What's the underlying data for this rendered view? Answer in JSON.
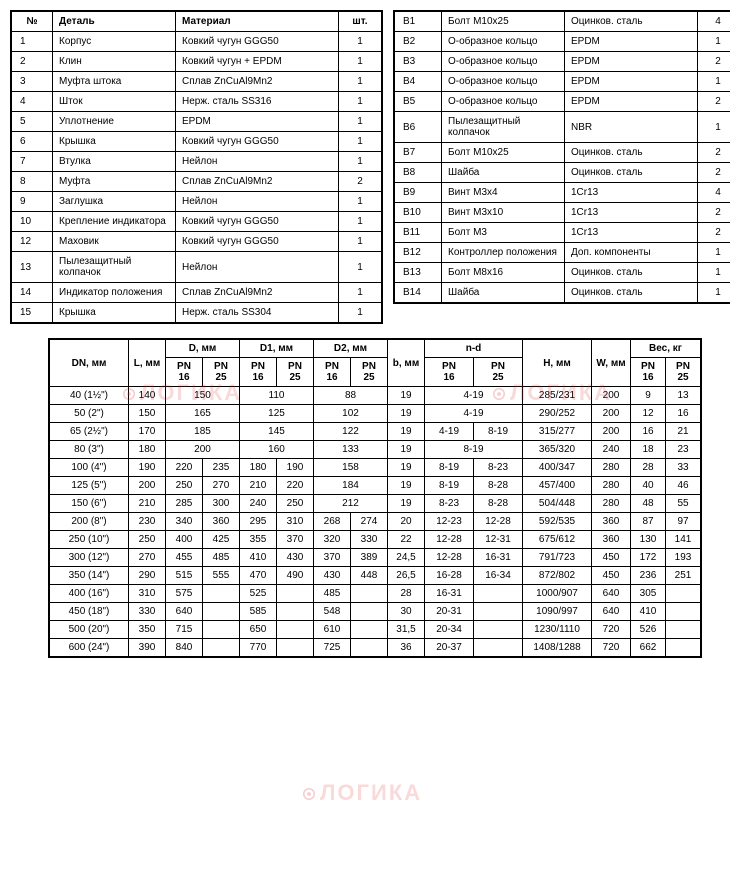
{
  "table1": {
    "headers": [
      "№",
      "Деталь",
      "Материал",
      "шт."
    ],
    "rows": [
      [
        "1",
        "Корпус",
        "Ковкий чугун GGG50",
        "1"
      ],
      [
        "2",
        "Клин",
        "Ковкий чугун + EPDM",
        "1"
      ],
      [
        "3",
        "Муфта штока",
        "Сплав ZnCuAl9Mn2",
        "1"
      ],
      [
        "4",
        "Шток",
        "Нерж. сталь SS316",
        "1"
      ],
      [
        "5",
        "Уплотнение",
        "EPDM",
        "1"
      ],
      [
        "6",
        "Крышка",
        "Ковкий чугун GGG50",
        "1"
      ],
      [
        "7",
        "Втулка",
        "Нейлон",
        "1"
      ],
      [
        "8",
        "Муфта",
        "Сплав ZnCuAl9Mn2",
        "2"
      ],
      [
        "9",
        "Заглушка",
        "Нейлон",
        "1"
      ],
      [
        "10",
        "Крепление индикатора",
        "Ковкий чугун GGG50",
        "1"
      ],
      [
        "12",
        "Маховик",
        "Ковкий чугун GGG50",
        "1"
      ],
      [
        "13",
        "Пылезащитный колпачок",
        "Нейлон",
        "1"
      ],
      [
        "14",
        "Индикатор положения",
        "Сплав ZnCuAl9Mn2",
        "1"
      ],
      [
        "15",
        "Крышка",
        "Нерж. сталь SS304",
        "1"
      ]
    ]
  },
  "table2": {
    "rows": [
      [
        "B1",
        "Болт М10х25",
        "Оцинков. сталь",
        "4"
      ],
      [
        "B2",
        "О-образное кольцо",
        "EPDM",
        "1"
      ],
      [
        "B3",
        "О-образное кольцо",
        "EPDM",
        "2"
      ],
      [
        "B4",
        "О-образное кольцо",
        "EPDM",
        "1"
      ],
      [
        "B5",
        "О-образное кольцо",
        "EPDM",
        "2"
      ],
      [
        "B6",
        "Пылезащитный колпачок",
        "NBR",
        "1"
      ],
      [
        "B7",
        "Болт М10х25",
        "Оцинков. сталь",
        "2"
      ],
      [
        "B8",
        "Шайба",
        "Оцинков. сталь",
        "2"
      ],
      [
        "B9",
        "Винт М3х4",
        "1Cr13",
        "4"
      ],
      [
        "B10",
        "Винт М3х10",
        "1Cr13",
        "2"
      ],
      [
        "B11",
        "Болт М3",
        "1Cr13",
        "2"
      ],
      [
        "B12",
        "Контроллер положения",
        "Доп. компоненты",
        "1"
      ],
      [
        "B13",
        "Болт М8х16",
        "Оцинков. сталь",
        "1"
      ],
      [
        "B14",
        "Шайба",
        "Оцинков. сталь",
        "1"
      ]
    ]
  },
  "dims": {
    "headers": {
      "dn": "DN, мм",
      "l": "L, мм",
      "d": "D, мм",
      "d1": "D1, мм",
      "d2": "D2, мм",
      "b": "b, мм",
      "nd": "n-d",
      "h": "H, мм",
      "w": "W, мм",
      "weight": "Вес, кг",
      "pn16": "PN 16",
      "pn25": "PN 25"
    },
    "rows": [
      {
        "dn": "40 (1½\")",
        "l": "140",
        "d16": "150",
        "d25": "",
        "d116": "110",
        "d125": "",
        "d216": "88",
        "d225": "",
        "b": "19",
        "nd16": "4-19",
        "nd25": "",
        "h": "285/231",
        "w": "200",
        "wg16": "9",
        "wg25": "13",
        "d_span": true,
        "d1_span": true,
        "d2_span": true,
        "nd_span": true
      },
      {
        "dn": "50 (2\")",
        "l": "150",
        "d16": "165",
        "d25": "",
        "d116": "125",
        "d125": "",
        "d216": "102",
        "d225": "",
        "b": "19",
        "nd16": "4-19",
        "nd25": "",
        "h": "290/252",
        "w": "200",
        "wg16": "12",
        "wg25": "16",
        "d_span": true,
        "d1_span": true,
        "d2_span": true,
        "nd_span": true
      },
      {
        "dn": "65 (2½\")",
        "l": "170",
        "d16": "185",
        "d25": "",
        "d116": "145",
        "d125": "",
        "d216": "122",
        "d225": "",
        "b": "19",
        "nd16": "4-19",
        "nd25": "8-19",
        "h": "315/277",
        "w": "200",
        "wg16": "16",
        "wg25": "21",
        "d_span": true,
        "d1_span": true,
        "d2_span": true,
        "nd_span": false
      },
      {
        "dn": "80 (3\")",
        "l": "180",
        "d16": "200",
        "d25": "",
        "d116": "160",
        "d125": "",
        "d216": "133",
        "d225": "",
        "b": "19",
        "nd16": "8-19",
        "nd25": "",
        "h": "365/320",
        "w": "240",
        "wg16": "18",
        "wg25": "23",
        "d_span": true,
        "d1_span": true,
        "d2_span": true,
        "nd_span": true
      },
      {
        "dn": "100 (4\")",
        "l": "190",
        "d16": "220",
        "d25": "235",
        "d116": "180",
        "d125": "190",
        "d216": "158",
        "d225": "",
        "b": "19",
        "nd16": "8-19",
        "nd25": "8-23",
        "h": "400/347",
        "w": "280",
        "wg16": "28",
        "wg25": "33",
        "d_span": false,
        "d1_span": false,
        "d2_span": true,
        "nd_span": false
      },
      {
        "dn": "125 (5\")",
        "l": "200",
        "d16": "250",
        "d25": "270",
        "d116": "210",
        "d125": "220",
        "d216": "184",
        "d225": "",
        "b": "19",
        "nd16": "8-19",
        "nd25": "8-28",
        "h": "457/400",
        "w": "280",
        "wg16": "40",
        "wg25": "46",
        "d_span": false,
        "d1_span": false,
        "d2_span": true,
        "nd_span": false
      },
      {
        "dn": "150 (6\")",
        "l": "210",
        "d16": "285",
        "d25": "300",
        "d116": "240",
        "d125": "250",
        "d216": "212",
        "d225": "",
        "b": "19",
        "nd16": "8-23",
        "nd25": "8-28",
        "h": "504/448",
        "w": "280",
        "wg16": "48",
        "wg25": "55",
        "d_span": false,
        "d1_span": false,
        "d2_span": true,
        "nd_span": false
      },
      {
        "dn": "200 (8\")",
        "l": "230",
        "d16": "340",
        "d25": "360",
        "d116": "295",
        "d125": "310",
        "d216": "268",
        "d225": "274",
        "b": "20",
        "nd16": "12-23",
        "nd25": "12-28",
        "h": "592/535",
        "w": "360",
        "wg16": "87",
        "wg25": "97",
        "d_span": false,
        "d1_span": false,
        "d2_span": false,
        "nd_span": false
      },
      {
        "dn": "250 (10\")",
        "l": "250",
        "d16": "400",
        "d25": "425",
        "d116": "355",
        "d125": "370",
        "d216": "320",
        "d225": "330",
        "b": "22",
        "nd16": "12-28",
        "nd25": "12-31",
        "h": "675/612",
        "w": "360",
        "wg16": "130",
        "wg25": "141",
        "d_span": false,
        "d1_span": false,
        "d2_span": false,
        "nd_span": false
      },
      {
        "dn": "300 (12\")",
        "l": "270",
        "d16": "455",
        "d25": "485",
        "d116": "410",
        "d125": "430",
        "d216": "370",
        "d225": "389",
        "b": "24,5",
        "nd16": "12-28",
        "nd25": "16-31",
        "h": "791/723",
        "w": "450",
        "wg16": "172",
        "wg25": "193",
        "d_span": false,
        "d1_span": false,
        "d2_span": false,
        "nd_span": false
      },
      {
        "dn": "350 (14\")",
        "l": "290",
        "d16": "515",
        "d25": "555",
        "d116": "470",
        "d125": "490",
        "d216": "430",
        "d225": "448",
        "b": "26,5",
        "nd16": "16-28",
        "nd25": "16-34",
        "h": "872/802",
        "w": "450",
        "wg16": "236",
        "wg25": "251",
        "d_span": false,
        "d1_span": false,
        "d2_span": false,
        "nd_span": false
      },
      {
        "dn": "400 (16\")",
        "l": "310",
        "d16": "575",
        "d25": "",
        "d116": "525",
        "d125": "",
        "d216": "485",
        "d225": "",
        "b": "28",
        "nd16": "16-31",
        "nd25": "",
        "h": "1000/907",
        "w": "640",
        "wg16": "305",
        "wg25": "",
        "d_span": false,
        "d1_span": false,
        "d2_span": false,
        "nd_span": false
      },
      {
        "dn": "450 (18\")",
        "l": "330",
        "d16": "640",
        "d25": "",
        "d116": "585",
        "d125": "",
        "d216": "548",
        "d225": "",
        "b": "30",
        "nd16": "20-31",
        "nd25": "",
        "h": "1090/997",
        "w": "640",
        "wg16": "410",
        "wg25": "",
        "d_span": false,
        "d1_span": false,
        "d2_span": false,
        "nd_span": false
      },
      {
        "dn": "500 (20\")",
        "l": "350",
        "d16": "715",
        "d25": "",
        "d116": "650",
        "d125": "",
        "d216": "610",
        "d225": "",
        "b": "31,5",
        "nd16": "20-34",
        "nd25": "",
        "h": "1230/1110",
        "w": "720",
        "wg16": "526",
        "wg25": "",
        "d_span": false,
        "d1_span": false,
        "d2_span": false,
        "nd_span": false
      },
      {
        "dn": "600 (24\")",
        "l": "390",
        "d16": "840",
        "d25": "",
        "d116": "770",
        "d125": "",
        "d216": "725",
        "d225": "",
        "b": "36",
        "nd16": "20-37",
        "nd25": "",
        "h": "1408/1288",
        "w": "720",
        "wg16": "662",
        "wg25": "",
        "d_span": false,
        "d1_span": false,
        "d2_span": false,
        "nd_span": false
      }
    ]
  },
  "watermark_text": "ЛОГИКА",
  "colors": {
    "border": "#000000",
    "text": "#000000",
    "watermark": "rgba(220,50,50,0.18)"
  },
  "col_widths": {
    "t1": [
      28,
      110,
      150,
      30
    ],
    "t2": [
      32,
      110,
      120,
      28
    ],
    "dims_dn": 70
  }
}
